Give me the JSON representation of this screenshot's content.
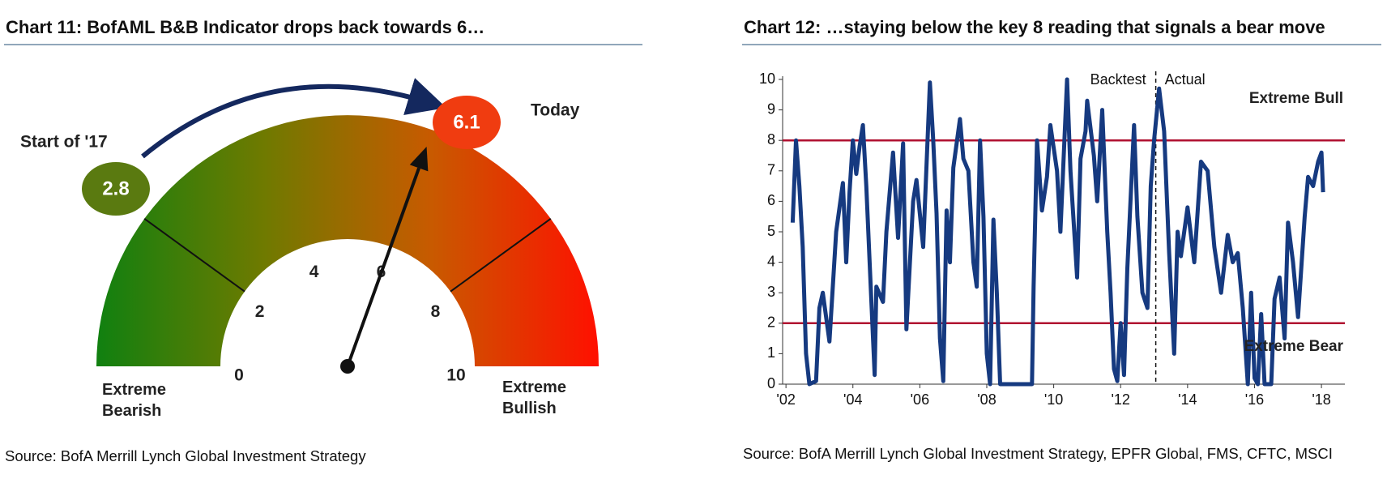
{
  "chart_data": [
    {
      "type": "gauge",
      "title": "Chart 11: BofAML B&B Indicator drops back towards 6…",
      "source": "Source: BofA Merrill Lynch Global Investment Strategy",
      "range": [
        0,
        10
      ],
      "ticks": [
        0,
        2,
        4,
        6,
        8,
        10
      ],
      "thresholds": [
        2,
        8
      ],
      "zones": [
        "Extreme Bearish",
        "Extreme Bullish"
      ],
      "markers": [
        {
          "name": "Start of '17",
          "value": 2.8,
          "color": "#5a7a10"
        },
        {
          "name": "Today",
          "value": 6.1,
          "color": "#f03c10"
        }
      ],
      "colors": [
        "#108010",
        "#6f7a00",
        "#c85a00",
        "#ff1000"
      ]
    },
    {
      "type": "line",
      "title": "Chart 12: …staying below the key 8 reading that signals a bear move",
      "source": "Source: BofA Merrill Lynch Global Investment Strategy, EPFR Global, FMS, CFTC, MSCI",
      "color": "#163a80",
      "x": [
        2002.2,
        2002.3,
        2002.4,
        2002.5,
        2002.6,
        2002.7,
        2002.9,
        2003.0,
        2003.1,
        2003.3,
        2003.5,
        2003.7,
        2003.8,
        2003.9,
        2004.0,
        2004.1,
        2004.2,
        2004.3,
        2004.4,
        2004.5,
        2004.65,
        2004.7,
        2004.9,
        2005.0,
        2005.2,
        2005.35,
        2005.5,
        2005.6,
        2005.8,
        2005.9,
        2006.1,
        2006.3,
        2006.4,
        2006.5,
        2006.6,
        2006.7,
        2006.8,
        2006.9,
        2007.0,
        2007.2,
        2007.3,
        2007.45,
        2007.6,
        2007.7,
        2007.8,
        2007.9,
        2008.0,
        2008.1,
        2008.2,
        2008.3,
        2008.4,
        2009.0,
        2009.35,
        2009.4,
        2009.5,
        2009.65,
        2009.8,
        2009.9,
        2010.1,
        2010.2,
        2010.4,
        2010.5,
        2010.7,
        2010.8,
        2010.95,
        2011.0,
        2011.2,
        2011.3,
        2011.45,
        2011.6,
        2011.7,
        2011.8,
        2011.9,
        2012.0,
        2012.1,
        2012.2,
        2012.4,
        2012.5,
        2012.65,
        2012.8,
        2012.9,
        2013.0,
        2013.15,
        2013.3,
        2013.45,
        2013.6,
        2013.7,
        2013.8,
        2014.0,
        2014.2,
        2014.4,
        2014.6,
        2014.8,
        2015.0,
        2015.2,
        2015.35,
        2015.5,
        2015.65,
        2015.8,
        2015.9,
        2016.0,
        2016.1,
        2016.2,
        2016.3,
        2016.5,
        2016.6,
        2016.75,
        2016.9,
        2017.0,
        2017.15,
        2017.3,
        2017.5,
        2017.6,
        2017.75,
        2017.9,
        2018.0,
        2018.05
      ],
      "values": [
        5.3,
        8.0,
        6.5,
        4.5,
        1.0,
        0,
        0.1,
        2.5,
        3.0,
        1.4,
        5.0,
        6.6,
        4.0,
        6.3,
        8.0,
        6.9,
        7.8,
        8.5,
        6.5,
        4.0,
        0.3,
        3.2,
        2.7,
        5.0,
        7.6,
        4.8,
        7.9,
        1.8,
        6.0,
        6.7,
        4.5,
        9.9,
        8.0,
        5.6,
        1.5,
        0.1,
        5.7,
        4.0,
        7.1,
        8.7,
        7.4,
        7.0,
        4.0,
        3.2,
        8.0,
        5.5,
        1.0,
        0,
        5.4,
        3.0,
        0,
        0,
        0,
        3.2,
        8.0,
        5.7,
        6.8,
        8.5,
        7.0,
        5.0,
        10.0,
        7.0,
        3.5,
        7.4,
        8.3,
        9.3,
        7.5,
        6.0,
        9.0,
        5.0,
        3.0,
        0.5,
        0.1,
        2.0,
        0.3,
        3.8,
        8.5,
        5.5,
        3.0,
        2.5,
        6.5,
        8.0,
        9.7,
        8.3,
        4.3,
        1.0,
        5.0,
        4.2,
        5.8,
        4.0,
        7.3,
        7.0,
        4.5,
        3.0,
        4.9,
        4.0,
        4.3,
        2.5,
        0,
        3.0,
        0.2,
        0,
        2.3,
        0,
        0,
        2.8,
        3.5,
        1.5,
        5.3,
        4.0,
        2.2,
        5.5,
        6.8,
        6.5,
        7.3,
        7.6,
        6.3
      ],
      "xlim": [
        2001.9,
        2018.7
      ],
      "ylim": [
        0,
        10
      ],
      "xticks": [
        {
          "value": 2002,
          "label": "'02"
        },
        {
          "value": 2004,
          "label": "'04"
        },
        {
          "value": 2006,
          "label": "'06"
        },
        {
          "value": 2008,
          "label": "'08"
        },
        {
          "value": 2010,
          "label": "'10"
        },
        {
          "value": 2012,
          "label": "'12"
        },
        {
          "value": 2014,
          "label": "'14"
        },
        {
          "value": 2016,
          "label": "'16"
        },
        {
          "value": 2018,
          "label": "'18"
        }
      ],
      "yticks": [
        0,
        1,
        2,
        3,
        4,
        5,
        6,
        7,
        8,
        9,
        10
      ],
      "reference_lines": [
        {
          "value": 8,
          "label": "Extreme Bull"
        },
        {
          "value": 2,
          "label": "Extreme Bear"
        }
      ],
      "reference_color": "#b01030",
      "divider": {
        "x": 2013.05,
        "left_label": "Backtest",
        "right_label": "Actual"
      }
    }
  ]
}
